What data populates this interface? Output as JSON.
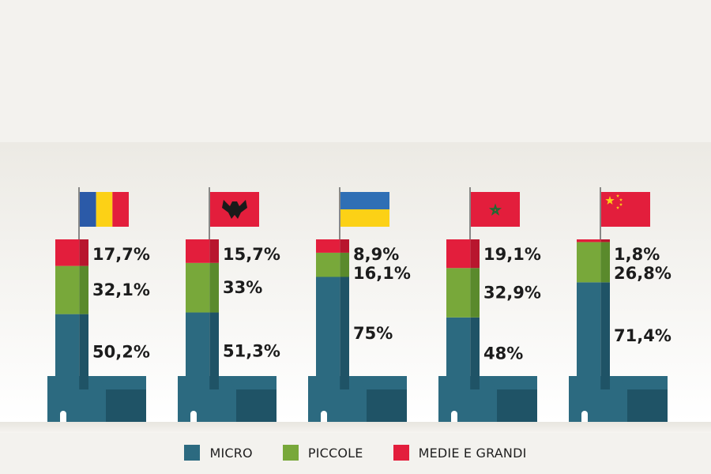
{
  "chart_data": {
    "type": "bar",
    "stacked": true,
    "unit": "%",
    "categories": [
      "Romania",
      "Albania",
      "Ucraina",
      "Marocco",
      "Cina"
    ],
    "series": [
      {
        "name": "MICRO",
        "color": "#2c6a80",
        "values": [
          50.2,
          51.3,
          75,
          48,
          71.4
        ],
        "labels": [
          "50,2%",
          "51,3%",
          "75%",
          "48%",
          "71,4%"
        ]
      },
      {
        "name": "PICCOLE",
        "color": "#78a83a",
        "values": [
          32.1,
          33,
          16.1,
          32.9,
          26.8
        ],
        "labels": [
          "32,1%",
          "33%",
          "16,1%",
          "32,9%",
          "26,8%"
        ]
      },
      {
        "name": "MEDIE E GRANDI",
        "color": "#e31e3c",
        "values": [
          17.7,
          15.7,
          8.9,
          19.1,
          1.8
        ],
        "labels": [
          "17,7%",
          "15,7%",
          "8,9%",
          "19,1%",
          "1,8%"
        ]
      }
    ],
    "flags": [
      "romania-flag",
      "albania-flag",
      "ukraine-flag",
      "morocco-flag",
      "china-flag"
    ],
    "ylim": [
      0,
      100
    ],
    "legend_position": "bottom"
  },
  "legend": {
    "items": [
      {
        "label": "MICRO",
        "color": "#2c6a80"
      },
      {
        "label": "PICCOLE",
        "color": "#78a83a"
      },
      {
        "label": "MEDIE E GRANDI",
        "color": "#e31e3c"
      }
    ]
  }
}
